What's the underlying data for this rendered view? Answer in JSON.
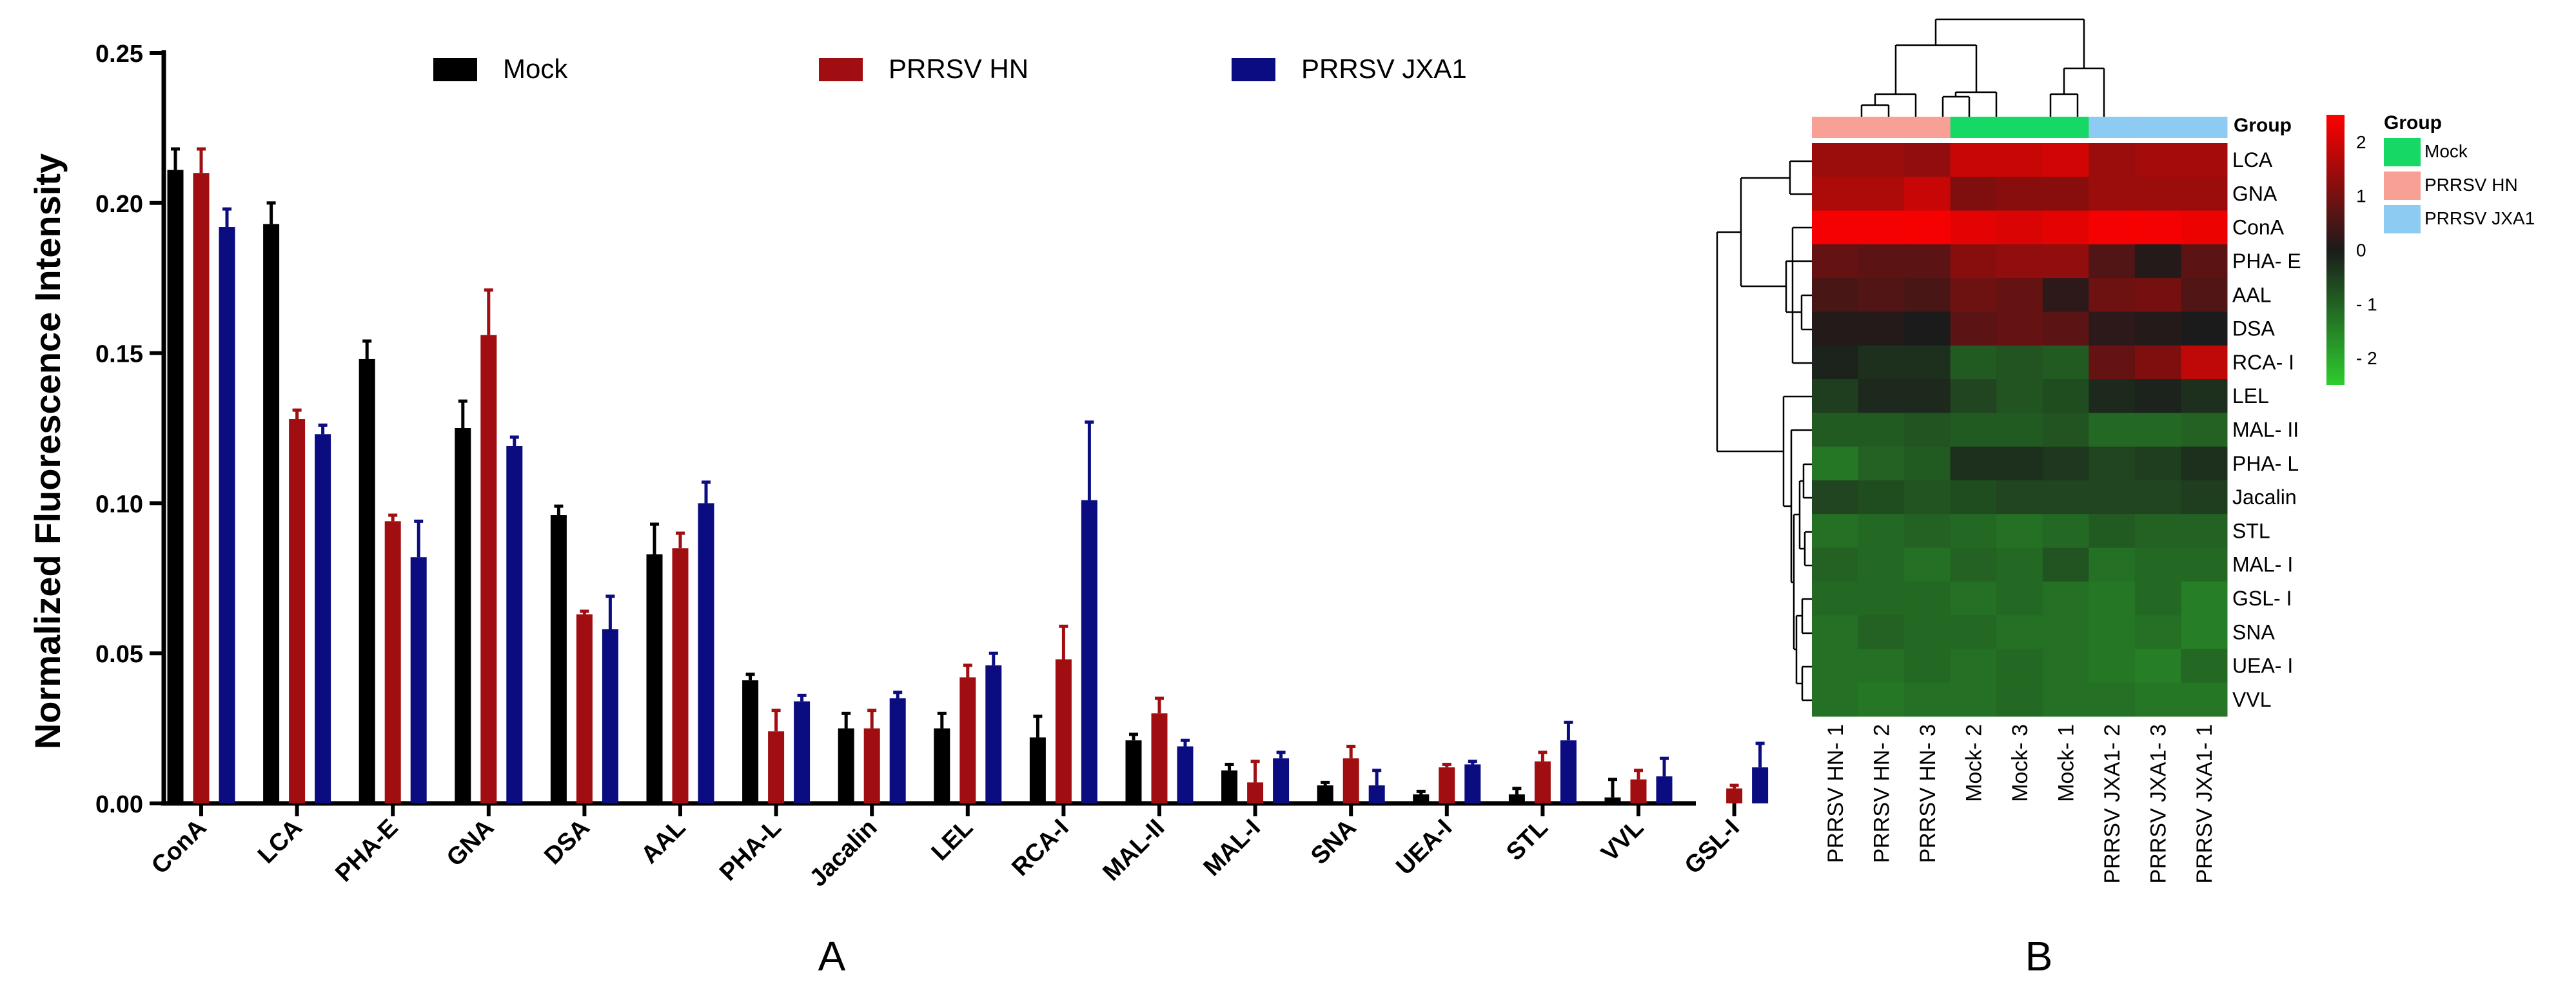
{
  "colors": {
    "mock": "#000000",
    "hn": "#A00E12",
    "jxa1": "#0A0C80",
    "group_mock": "#16D965",
    "group_hn": "#F8A096",
    "group_jxa1": "#8ECBF2",
    "heat_high": "#FF0000",
    "heat_mid": "#1B1B1B",
    "heat_low": "#2ECC2E"
  },
  "chart_data": [
    {
      "type": "bar",
      "panel_label": "A",
      "title": "",
      "xlabel": "",
      "ylabel": "Normalized Fluorescence Intensity",
      "ylim": [
        0,
        0.25
      ],
      "yticks": [
        "0.00",
        "0.05",
        "0.10",
        "0.15",
        "0.20",
        "0.25"
      ],
      "legend_position": "top",
      "categories": [
        "ConA",
        "LCA",
        "PHA-E",
        "GNA",
        "DSA",
        "AAL",
        "PHA-L",
        "Jacalin",
        "LEL",
        "RCA-I",
        "MAL-II",
        "MAL-I",
        "SNA",
        "UEA-I",
        "STL",
        "VVL",
        "GSL-I"
      ],
      "series": [
        {
          "name": "Mock",
          "color_key": "mock",
          "values": [
            0.211,
            0.193,
            0.148,
            0.125,
            0.096,
            0.083,
            0.041,
            0.025,
            0.025,
            0.022,
            0.021,
            0.011,
            0.006,
            0.003,
            0.003,
            0.002,
            0.0
          ],
          "errors": [
            0.007,
            0.007,
            0.006,
            0.009,
            0.003,
            0.01,
            0.002,
            0.005,
            0.005,
            0.007,
            0.002,
            0.002,
            0.001,
            0.001,
            0.002,
            0.006,
            0.0
          ]
        },
        {
          "name": "PRRSV HN",
          "color_key": "hn",
          "values": [
            0.21,
            0.128,
            0.094,
            0.156,
            0.063,
            0.085,
            0.024,
            0.025,
            0.042,
            0.048,
            0.03,
            0.007,
            0.015,
            0.012,
            0.014,
            0.008,
            0.005
          ],
          "errors": [
            0.008,
            0.003,
            0.002,
            0.015,
            0.001,
            0.005,
            0.007,
            0.006,
            0.004,
            0.011,
            0.005,
            0.007,
            0.004,
            0.001,
            0.003,
            0.003,
            0.001
          ]
        },
        {
          "name": "PRRSV JXA1",
          "color_key": "jxa1",
          "values": [
            0.192,
            0.123,
            0.082,
            0.119,
            0.058,
            0.1,
            0.034,
            0.035,
            0.046,
            0.101,
            0.019,
            0.015,
            0.006,
            0.013,
            0.021,
            0.009,
            0.012
          ],
          "errors": [
            0.006,
            0.003,
            0.012,
            0.003,
            0.011,
            0.007,
            0.002,
            0.002,
            0.004,
            0.026,
            0.002,
            0.002,
            0.005,
            0.001,
            0.006,
            0.006,
            0.008
          ]
        }
      ]
    },
    {
      "type": "heatmap",
      "panel_label": "B",
      "group_label": "Group",
      "rows": [
        "LCA",
        "GNA",
        "ConA",
        "PHA- E",
        "AAL",
        "DSA",
        "RCA- I",
        "LEL",
        "MAL- II",
        "PHA- L",
        "Jacalin",
        "STL",
        "MAL- I",
        "GSL- I",
        "SNA",
        "UEA- I",
        "VVL"
      ],
      "columns": [
        "PRRSV HN- 1",
        "PRRSV HN- 2",
        "PRRSV HN- 3",
        "Mock- 2",
        "Mock- 3",
        "Mock- 1",
        "PRRSV JXA1- 2",
        "PRRSV JXA1- 3",
        "PRRSV JXA1- 1"
      ],
      "column_groups": [
        "PRRSV HN",
        "PRRSV HN",
        "PRRSV HN",
        "Mock",
        "Mock",
        "Mock",
        "PRRSV JXA1",
        "PRRSV JXA1",
        "PRRSV JXA1"
      ],
      "values": [
        [
          1.4,
          1.4,
          1.3,
          1.9,
          1.9,
          2.0,
          1.4,
          1.5,
          1.5
        ],
        [
          1.6,
          1.6,
          1.9,
          1.1,
          1.2,
          1.2,
          1.4,
          1.4,
          1.4
        ],
        [
          2.4,
          2.4,
          2.4,
          2.2,
          2.1,
          2.2,
          2.4,
          2.4,
          2.3
        ],
        [
          0.8,
          0.7,
          0.7,
          1.2,
          1.3,
          1.3,
          0.6,
          0.1,
          0.7
        ],
        [
          0.5,
          0.6,
          0.5,
          0.9,
          0.8,
          0.2,
          0.9,
          1.0,
          0.6
        ],
        [
          0.1,
          0.1,
          0.0,
          0.7,
          0.8,
          0.7,
          0.2,
          0.1,
          0.0
        ],
        [
          -0.1,
          -0.3,
          -0.3,
          -0.9,
          -0.8,
          -0.9,
          0.8,
          1.1,
          1.8
        ],
        [
          -0.5,
          -0.2,
          -0.2,
          -0.6,
          -0.8,
          -0.7,
          -0.2,
          -0.1,
          -0.3
        ],
        [
          -0.9,
          -0.9,
          -0.8,
          -0.9,
          -0.9,
          -0.8,
          -1.1,
          -1.1,
          -1.0
        ],
        [
          -1.3,
          -1.0,
          -0.9,
          -0.3,
          -0.3,
          -0.4,
          -0.6,
          -0.5,
          -0.3
        ],
        [
          -0.6,
          -0.7,
          -0.8,
          -0.7,
          -0.6,
          -0.6,
          -0.6,
          -0.6,
          -0.5
        ],
        [
          -1.2,
          -1.1,
          -1.0,
          -1.1,
          -1.2,
          -1.1,
          -0.9,
          -1.0,
          -1.0
        ],
        [
          -1.0,
          -1.1,
          -1.2,
          -1.0,
          -1.1,
          -0.8,
          -1.2,
          -1.1,
          -1.1
        ],
        [
          -1.1,
          -1.1,
          -1.1,
          -1.2,
          -1.1,
          -1.2,
          -1.3,
          -1.1,
          -1.4
        ],
        [
          -1.2,
          -1.0,
          -1.1,
          -1.1,
          -1.2,
          -1.2,
          -1.3,
          -1.2,
          -1.4
        ],
        [
          -1.2,
          -1.2,
          -1.1,
          -1.2,
          -1.1,
          -1.2,
          -1.3,
          -1.4,
          -1.1
        ],
        [
          -1.2,
          -1.3,
          -1.2,
          -1.2,
          -1.1,
          -1.2,
          -1.2,
          -1.3,
          -1.3
        ]
      ],
      "color_scale": {
        "min": -2.5,
        "max": 2.5,
        "ticks": [
          "2",
          "1",
          "0",
          "- 1",
          "- 2"
        ]
      },
      "legend": {
        "title": "Group",
        "entries": [
          "Mock",
          "PRRSV HN",
          "PRRSV JXA1"
        ]
      }
    }
  ]
}
